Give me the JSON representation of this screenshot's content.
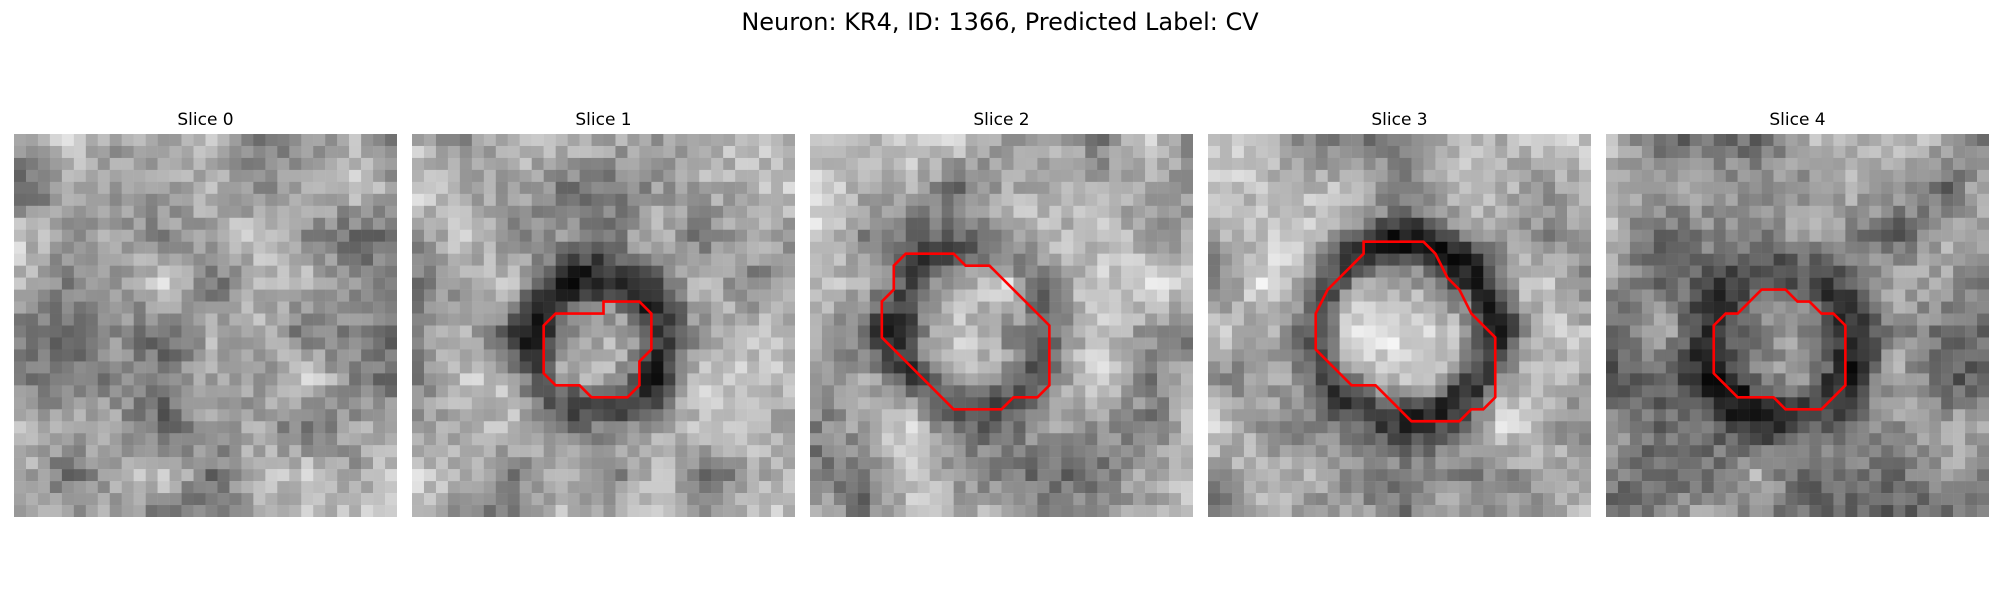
{
  "figure": {
    "title": "Neuron: KR4, ID: 1366, Predicted Label: CV"
  },
  "outline_color": "#ff0000",
  "panels": [
    {
      "title": "Slice 0",
      "has_outline": false,
      "outline_points": []
    },
    {
      "title": "Slice 1",
      "has_outline": true,
      "outline_points": [
        [
          16,
          15
        ],
        [
          16,
          14
        ],
        [
          19,
          14
        ],
        [
          20,
          15
        ],
        [
          20,
          18
        ],
        [
          19,
          19
        ],
        [
          19,
          21
        ],
        [
          18,
          22
        ],
        [
          15,
          22
        ],
        [
          14,
          21
        ],
        [
          12,
          21
        ],
        [
          11,
          20
        ],
        [
          11,
          16
        ],
        [
          12,
          15
        ]
      ]
    },
    {
      "title": "Slice 2",
      "has_outline": true,
      "outline_points": [
        [
          8,
          10
        ],
        [
          12,
          10
        ],
        [
          13,
          11
        ],
        [
          15,
          11
        ],
        [
          16,
          12
        ],
        [
          20,
          16
        ],
        [
          20,
          21
        ],
        [
          19,
          22
        ],
        [
          17,
          22
        ],
        [
          16,
          23
        ],
        [
          12,
          23
        ],
        [
          10,
          21
        ],
        [
          9,
          20
        ],
        [
          6,
          17
        ],
        [
          6,
          14
        ],
        [
          7,
          13
        ],
        [
          7,
          11
        ]
      ]
    },
    {
      "title": "Slice 3",
      "has_outline": true,
      "outline_points": [
        [
          13,
          9
        ],
        [
          18,
          9
        ],
        [
          19,
          10
        ],
        [
          20,
          12
        ],
        [
          21,
          13
        ],
        [
          22,
          15
        ],
        [
          24,
          17
        ],
        [
          24,
          22
        ],
        [
          23,
          23
        ],
        [
          22,
          23
        ],
        [
          21,
          24
        ],
        [
          17,
          24
        ],
        [
          16,
          23
        ],
        [
          15,
          22
        ],
        [
          14,
          21
        ],
        [
          12,
          21
        ],
        [
          11,
          20
        ],
        [
          10,
          19
        ],
        [
          9,
          18
        ],
        [
          9,
          15
        ],
        [
          10,
          13
        ],
        [
          11,
          12
        ],
        [
          12,
          11
        ],
        [
          13,
          10
        ]
      ]
    },
    {
      "title": "Slice 4",
      "has_outline": true,
      "outline_points": [
        [
          11,
          15
        ],
        [
          12,
          14
        ],
        [
          13,
          13
        ],
        [
          15,
          13
        ],
        [
          16,
          14
        ],
        [
          17,
          14
        ],
        [
          18,
          15
        ],
        [
          19,
          15
        ],
        [
          20,
          16
        ],
        [
          20,
          21
        ],
        [
          19,
          22
        ],
        [
          18,
          23
        ],
        [
          15,
          23
        ],
        [
          14,
          22
        ],
        [
          11,
          22
        ],
        [
          10,
          21
        ],
        [
          9,
          20
        ],
        [
          9,
          16
        ],
        [
          10,
          15
        ]
      ]
    }
  ]
}
